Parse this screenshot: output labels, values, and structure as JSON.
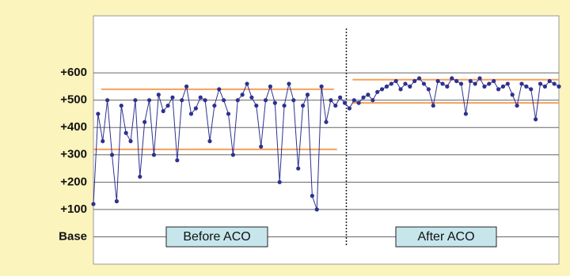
{
  "chart_data": {
    "type": "line",
    "x": [
      0,
      3,
      6,
      9,
      12,
      15,
      18,
      21,
      24,
      27,
      30,
      33,
      36,
      39,
      42,
      45,
      48,
      51,
      54,
      57,
      60,
      63,
      66,
      69,
      72,
      75,
      78,
      81,
      84,
      87,
      90,
      93,
      96,
      99,
      102,
      105,
      108,
      111,
      114,
      117,
      120,
      123,
      126,
      129,
      132,
      135,
      138,
      141,
      144,
      147,
      150,
      153,
      156,
      159,
      162,
      165,
      168,
      171,
      174,
      177,
      180,
      183,
      186,
      189,
      192,
      195,
      198,
      201,
      204,
      207,
      210,
      213,
      216,
      219,
      222,
      225,
      228,
      231,
      234,
      237,
      240,
      243,
      246,
      249,
      252,
      255,
      258,
      261,
      264,
      267,
      270,
      273,
      276,
      279,
      282,
      285,
      288,
      291,
      294,
      297,
      300
    ],
    "series": [
      {
        "color": "#2e318f",
        "values": [
          120,
          450,
          350,
          500,
          300,
          130,
          480,
          380,
          350,
          500,
          220,
          420,
          500,
          300,
          520,
          460,
          480,
          510,
          280,
          500,
          550,
          450,
          470,
          510,
          500,
          350,
          480,
          540,
          500,
          450,
          300,
          500,
          520,
          560,
          510,
          480,
          330,
          500,
          550,
          490,
          200,
          480,
          560,
          500,
          250,
          480,
          520,
          150,
          100,
          550,
          420,
          500,
          480,
          510,
          490,
          470,
          500,
          490,
          510,
          520,
          500,
          530,
          540,
          550,
          560,
          570,
          540,
          560,
          550,
          570,
          580,
          560,
          540,
          480,
          570,
          560,
          550,
          580,
          570,
          560,
          450,
          570,
          560,
          580,
          550,
          560,
          570,
          540,
          550,
          560,
          520,
          480,
          560,
          550,
          540,
          430,
          560,
          550,
          570,
          560,
          550
        ]
      }
    ],
    "xlim": [
      0,
      300
    ],
    "ylim": [
      -100,
      800
    ],
    "yticks": [
      {
        "value": 0,
        "label": "Base"
      },
      {
        "value": 100,
        "label": "+100"
      },
      {
        "value": 200,
        "label": "+200"
      },
      {
        "value": 300,
        "label": "+300"
      },
      {
        "value": 400,
        "label": "+400"
      },
      {
        "value": 500,
        "label": "+500"
      },
      {
        "value": 600,
        "label": "+600"
      }
    ],
    "grid": true,
    "divider_x": 163,
    "reference_lines": [
      {
        "value": 540,
        "x": [
          5,
          155
        ],
        "color": "#f5a05a"
      },
      {
        "value": 320,
        "x": [
          0,
          157
        ],
        "color": "#f5a05a"
      },
      {
        "value": 575,
        "x": [
          167,
          300
        ],
        "color": "#f5a05a"
      },
      {
        "value": 490,
        "x": [
          167,
          300
        ],
        "color": "#f5a05a"
      }
    ],
    "annotations": [
      "Before ACO",
      "After ACO"
    ]
  }
}
